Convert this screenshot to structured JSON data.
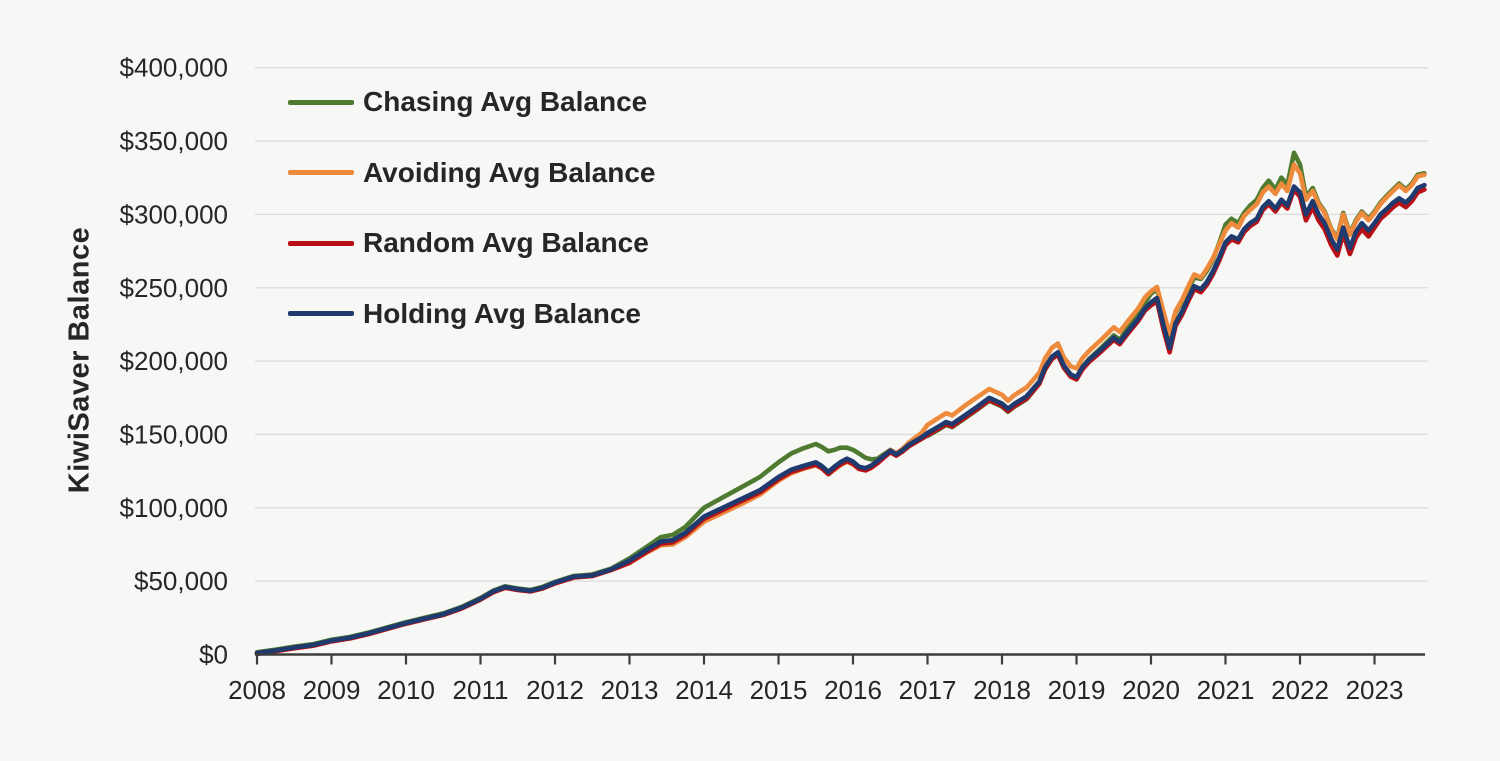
{
  "chart_data": {
    "type": "line",
    "title": "",
    "xlabel": "",
    "ylabel": "KiwiSaver Balance",
    "grid": true,
    "legend_position": "top-left",
    "background_color": "#f7f7f5",
    "gridline_color": "#dcdcdc",
    "axis_color": "#3d3d3d",
    "text_color": "#262626",
    "xlim": [
      2008,
      2023.72
    ],
    "ylim": [
      0,
      400000
    ],
    "x_ticks": [
      {
        "label": "2008",
        "value": 2008
      },
      {
        "label": "2009",
        "value": 2009
      },
      {
        "label": "2010",
        "value": 2010
      },
      {
        "label": "2011",
        "value": 2011
      },
      {
        "label": "2012",
        "value": 2012
      },
      {
        "label": "2013",
        "value": 2013
      },
      {
        "label": "2014",
        "value": 2014
      },
      {
        "label": "2015",
        "value": 2015
      },
      {
        "label": "2016",
        "value": 2016
      },
      {
        "label": "2017",
        "value": 2017
      },
      {
        "label": "2018",
        "value": 2018
      },
      {
        "label": "2019",
        "value": 2019
      },
      {
        "label": "2020",
        "value": 2020
      },
      {
        "label": "2021",
        "value": 2021
      },
      {
        "label": "2022",
        "value": 2022
      },
      {
        "label": "2023",
        "value": 2023
      }
    ],
    "y_ticks": [
      {
        "label": "$0",
        "value": 0
      },
      {
        "label": "$50,000",
        "value": 50000
      },
      {
        "label": "$100,000",
        "value": 100000
      },
      {
        "label": "$150,000",
        "value": 150000
      },
      {
        "label": "$200,000",
        "value": 200000
      },
      {
        "label": "$250,000",
        "value": 250000
      },
      {
        "label": "$300,000",
        "value": 300000
      },
      {
        "label": "$350,000",
        "value": 350000
      },
      {
        "label": "$400,000",
        "value": 400000
      }
    ],
    "x": [
      2008.0,
      2008.25,
      2008.5,
      2008.75,
      2009.0,
      2009.25,
      2009.5,
      2009.75,
      2010.0,
      2010.25,
      2010.5,
      2010.75,
      2011.0,
      2011.17,
      2011.33,
      2011.5,
      2011.67,
      2011.83,
      2012.0,
      2012.25,
      2012.5,
      2012.75,
      2013.0,
      2013.25,
      2013.42,
      2013.58,
      2013.75,
      2014.0,
      2014.25,
      2014.5,
      2014.75,
      2015.0,
      2015.17,
      2015.33,
      2015.5,
      2015.58,
      2015.67,
      2015.75,
      2015.83,
      2015.92,
      2016.0,
      2016.08,
      2016.17,
      2016.25,
      2016.33,
      2016.5,
      2016.58,
      2016.67,
      2016.75,
      2016.92,
      2017.0,
      2017.17,
      2017.25,
      2017.33,
      2017.5,
      2017.67,
      2017.83,
      2018.0,
      2018.08,
      2018.17,
      2018.33,
      2018.5,
      2018.58,
      2018.67,
      2018.75,
      2018.83,
      2018.92,
      2019.0,
      2019.08,
      2019.17,
      2019.33,
      2019.5,
      2019.58,
      2019.67,
      2019.83,
      2019.92,
      2020.0,
      2020.08,
      2020.17,
      2020.25,
      2020.33,
      2020.42,
      2020.5,
      2020.58,
      2020.67,
      2020.75,
      2020.83,
      2020.92,
      2021.0,
      2021.08,
      2021.17,
      2021.25,
      2021.33,
      2021.42,
      2021.5,
      2021.58,
      2021.67,
      2021.75,
      2021.83,
      2021.92,
      2022.0,
      2022.08,
      2022.17,
      2022.25,
      2022.33,
      2022.42,
      2022.5,
      2022.58,
      2022.67,
      2022.75,
      2022.83,
      2022.92,
      2023.0,
      2023.08,
      2023.17,
      2023.25,
      2023.33,
      2023.42,
      2023.5,
      2023.58,
      2023.67
    ],
    "series": [
      {
        "name": "Chasing Avg Balance",
        "color": "#4e7b2f",
        "values": [
          1500,
          3300,
          5300,
          7000,
          10000,
          12000,
          15000,
          18500,
          22000,
          25000,
          28000,
          32500,
          38500,
          43500,
          46500,
          45000,
          44000,
          46000,
          49500,
          53500,
          54500,
          58500,
          65500,
          74000,
          80000,
          81500,
          87000,
          100000,
          107000,
          114000,
          121000,
          131000,
          137000,
          140500,
          143500,
          141500,
          138500,
          139500,
          141000,
          141000,
          139500,
          137000,
          134000,
          133000,
          133500,
          139500,
          137000,
          140000,
          143500,
          148500,
          149000,
          154000,
          156500,
          155000,
          161000,
          167000,
          173000,
          169000,
          165500,
          169000,
          174000,
          184500,
          194500,
          201500,
          204500,
          196000,
          190000,
          188500,
          196000,
          201500,
          209000,
          217500,
          214500,
          221000,
          232000,
          240000,
          246000,
          249000,
          232000,
          217500,
          233000,
          241000,
          249000,
          257000,
          256000,
          261500,
          269000,
          281000,
          293000,
          297000,
          294000,
          301000,
          306000,
          310000,
          318000,
          323000,
          317000,
          325000,
          320000,
          342000,
          334000,
          312000,
          318000,
          308000,
          302000,
          290000,
          284000,
          301000,
          287000,
          296000,
          302000,
          297000,
          302000,
          308000,
          313000,
          317000,
          321000,
          317000,
          321000,
          327000,
          328000
        ]
      },
      {
        "name": "Avoiding Avg Balance",
        "color": "#ee8a3c",
        "values": [
          500,
          2300,
          4300,
          6000,
          9000,
          11000,
          14000,
          17500,
          21000,
          24000,
          27000,
          31500,
          37500,
          42500,
          45500,
          44000,
          43000,
          45000,
          48500,
          52500,
          53500,
          57500,
          62500,
          70000,
          74500,
          75000,
          80000,
          90500,
          96500,
          102500,
          109000,
          118500,
          123500,
          126500,
          129000,
          127000,
          123000,
          126000,
          129000,
          131500,
          129500,
          126500,
          125500,
          128000,
          131500,
          139500,
          137000,
          140500,
          144500,
          151000,
          156500,
          162000,
          164500,
          163000,
          169500,
          175500,
          181000,
          177000,
          173000,
          177000,
          182000,
          192000,
          202000,
          209000,
          212000,
          202500,
          196500,
          195000,
          202000,
          207000,
          214500,
          223000,
          220000,
          226000,
          236000,
          243500,
          247500,
          250500,
          233000,
          218500,
          234000,
          242000,
          251000,
          259000,
          257000,
          263000,
          270000,
          280000,
          289000,
          294000,
          291000,
          299000,
          303000,
          307000,
          315000,
          319000,
          314000,
          321000,
          316000,
          334000,
          328000,
          310000,
          316000,
          307000,
          301000,
          289500,
          283000,
          300000,
          286000,
          295000,
          301000,
          296000,
          301000,
          307000,
          312000,
          316000,
          320000,
          316000,
          320000,
          326000,
          327000
        ]
      },
      {
        "name": "Random Avg Balance",
        "color": "#b91016",
        "values": [
          500,
          2300,
          4300,
          6000,
          9000,
          11000,
          14000,
          17500,
          21000,
          24000,
          27000,
          31500,
          37500,
          42500,
          45500,
          44000,
          43000,
          45000,
          48500,
          52500,
          53500,
          57500,
          62500,
          70500,
          75500,
          76500,
          81500,
          92500,
          98500,
          104500,
          110500,
          119500,
          124500,
          127000,
          129500,
          127000,
          123000,
          126500,
          129500,
          132000,
          130000,
          126500,
          125500,
          127500,
          130500,
          138000,
          135500,
          138500,
          142000,
          147000,
          149500,
          154500,
          157000,
          155500,
          161500,
          167500,
          173500,
          169500,
          166000,
          169500,
          174500,
          184500,
          194500,
          201500,
          204500,
          195500,
          189500,
          187500,
          194500,
          199500,
          206500,
          214500,
          211500,
          217500,
          227500,
          234500,
          238000,
          241000,
          221000,
          206000,
          224000,
          232000,
          241000,
          249000,
          247000,
          252000,
          259000,
          269000,
          279000,
          283000,
          281000,
          288000,
          292000,
          295000,
          303000,
          307000,
          302000,
          308000,
          304000,
          317000,
          312000,
          296000,
          305000,
          296000,
          290000,
          279000,
          272000,
          287000,
          273000,
          284000,
          290000,
          285000,
          291000,
          297000,
          301000,
          305000,
          308000,
          305000,
          309000,
          315000,
          317000
        ]
      },
      {
        "name": "Holding Avg Balance",
        "color": "#1f3a6e",
        "values": [
          1000,
          2800,
          4800,
          6500,
          9500,
          11500,
          14500,
          18000,
          21500,
          24500,
          27500,
          32000,
          38000,
          43000,
          46000,
          44500,
          43500,
          45500,
          49000,
          53000,
          54000,
          58000,
          64000,
          72000,
          77000,
          78000,
          83000,
          94000,
          100000,
          106000,
          112000,
          121000,
          126000,
          128500,
          131000,
          128500,
          124500,
          128000,
          131000,
          133500,
          131500,
          128000,
          127000,
          129000,
          132000,
          139000,
          136500,
          139500,
          143000,
          148000,
          151000,
          156000,
          158500,
          157000,
          163000,
          169000,
          175000,
          171000,
          167500,
          171000,
          176000,
          186000,
          196000,
          203000,
          206000,
          197000,
          191000,
          189000,
          196000,
          201000,
          208000,
          216000,
          213000,
          219000,
          229000,
          236000,
          240000,
          243000,
          224000,
          209000,
          226000,
          234000,
          243000,
          251000,
          249000,
          254000,
          261000,
          271000,
          281000,
          285000,
          283000,
          290000,
          294000,
          297000,
          305000,
          309000,
          304000,
          310000,
          306000,
          319000,
          315000,
          300000,
          309000,
          300000,
          294000,
          283000,
          276000,
          291000,
          277000,
          288000,
          294000,
          289000,
          294000,
          300000,
          304000,
          308000,
          311000,
          308000,
          312000,
          318000,
          320000
        ]
      }
    ]
  }
}
